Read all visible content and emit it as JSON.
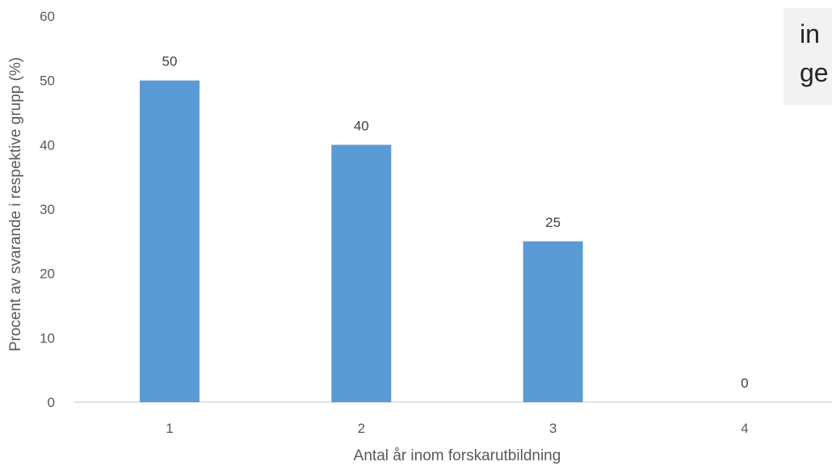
{
  "chart_data": {
    "type": "bar",
    "title": "",
    "categories": [
      "1",
      "2",
      "3",
      "4"
    ],
    "values": [
      50,
      40,
      25,
      0
    ],
    "data_labels": [
      "50",
      "40",
      "25",
      "0"
    ],
    "xlabel": "Antal år inom forskarutbildning",
    "ylabel": "Procent av svarande i respektive grupp (%)",
    "ylim": [
      0,
      60
    ],
    "yticks": [
      0,
      10,
      20,
      30,
      40,
      50,
      60
    ],
    "ytick_labels": [
      "0",
      "10",
      "20",
      "30",
      "40",
      "50",
      "60"
    ],
    "grid": false,
    "bar_color": "#5b9bd5",
    "legend": "none"
  },
  "callout": {
    "lines": [
      "in",
      "ge"
    ]
  }
}
